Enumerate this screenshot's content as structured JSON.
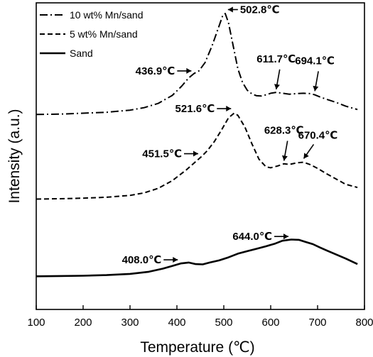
{
  "chart_data": {
    "type": "line",
    "xlabel": "Temperature (℃)",
    "ylabel": "Intensity (a.u.)",
    "xlim": [
      100,
      800
    ],
    "ylim": [
      0,
      10
    ],
    "xticks": [
      100,
      200,
      300,
      400,
      500,
      600,
      700,
      800
    ],
    "xtick_labels": [
      "100",
      "200",
      "300",
      "400",
      "500",
      "600",
      "700",
      "800"
    ],
    "y_ticks_shown": false,
    "grid": false,
    "legend_position": "top-left",
    "series": [
      {
        "name": "10 wt% Mn/sand",
        "style": "dash-dot",
        "x": [
          100,
          150,
          200,
          250,
          300,
          330,
          360,
          390,
          410,
          425,
          437,
          447,
          460,
          475,
          490,
          498,
          503,
          510,
          520,
          530,
          540,
          550,
          560,
          570,
          580,
          590,
          600,
          612,
          625,
          640,
          655,
          670,
          685,
          694,
          705,
          720,
          740,
          760,
          785
        ],
        "y": [
          6.36,
          6.37,
          6.4,
          6.43,
          6.5,
          6.58,
          6.72,
          6.98,
          7.28,
          7.55,
          7.7,
          7.78,
          8.05,
          8.6,
          9.25,
          9.6,
          9.65,
          9.35,
          8.6,
          7.85,
          7.4,
          7.15,
          7.03,
          6.97,
          6.96,
          7.0,
          7.05,
          7.08,
          7.05,
          7.02,
          7.04,
          7.05,
          7.04,
          7.0,
          6.93,
          6.85,
          6.75,
          6.63,
          6.52
        ]
      },
      {
        "name": "5 wt% Mn/sand",
        "style": "dashed",
        "x": [
          100,
          150,
          200,
          250,
          300,
          330,
          360,
          390,
          420,
          440,
          452,
          465,
          480,
          495,
          510,
          522,
          530,
          545,
          560,
          575,
          590,
          600,
          615,
          628,
          640,
          655,
          670,
          685,
          700,
          720,
          740,
          760,
          785
        ],
        "y": [
          3.6,
          3.61,
          3.63,
          3.66,
          3.72,
          3.8,
          3.95,
          4.2,
          4.55,
          4.82,
          4.98,
          5.18,
          5.48,
          5.85,
          6.25,
          6.4,
          6.33,
          5.95,
          5.4,
          4.9,
          4.65,
          4.62,
          4.68,
          4.75,
          4.73,
          4.78,
          4.8,
          4.72,
          4.6,
          4.42,
          4.25,
          4.08,
          3.98
        ]
      },
      {
        "name": "Sand",
        "style": "solid",
        "x": [
          100,
          150,
          200,
          250,
          300,
          340,
          370,
          390,
          408,
          425,
          440,
          455,
          470,
          490,
          510,
          530,
          550,
          570,
          590,
          610,
          625,
          644,
          660,
          675,
          690,
          705,
          720,
          740,
          760,
          785
        ],
        "y": [
          1.08,
          1.09,
          1.1,
          1.12,
          1.16,
          1.23,
          1.33,
          1.42,
          1.5,
          1.53,
          1.48,
          1.47,
          1.53,
          1.6,
          1.7,
          1.82,
          1.9,
          1.98,
          2.06,
          2.15,
          2.24,
          2.28,
          2.27,
          2.2,
          2.13,
          2.02,
          1.92,
          1.79,
          1.66,
          1.48
        ]
      }
    ],
    "annotations": [
      {
        "text": "502.8℃",
        "arrow": "left",
        "series": "10 wt% Mn/sand",
        "x": 502.8,
        "y": 9.78
      },
      {
        "text": "436.9℃",
        "arrow": "right",
        "series": "10 wt% Mn/sand",
        "x": 436.9,
        "y": 7.78
      },
      {
        "text": "611.7℃",
        "arrow": "down",
        "series": "10 wt% Mn/sand",
        "x": 611.7,
        "y": 7.18
      },
      {
        "text": "694.1℃",
        "arrow": "down",
        "series": "10 wt% Mn/sand",
        "x": 694.1,
        "y": 7.12
      },
      {
        "text": "521.6℃",
        "arrow": "right",
        "series": "5 wt% Mn/sand",
        "x": 521.6,
        "y": 6.55
      },
      {
        "text": "451.5℃",
        "arrow": "right",
        "series": "5 wt% Mn/sand",
        "x": 451.5,
        "y": 5.08
      },
      {
        "text": "628.3℃",
        "arrow": "down",
        "series": "5 wt% Mn/sand",
        "x": 628.3,
        "y": 4.85
      },
      {
        "text": "670.4℃",
        "arrow": "down-left",
        "series": "5 wt% Mn/sand",
        "x": 670.4,
        "y": 4.92
      },
      {
        "text": "408.0℃",
        "arrow": "right",
        "series": "Sand",
        "x": 408.0,
        "y": 1.62
      },
      {
        "text": "644.0℃",
        "arrow": "right",
        "series": "Sand",
        "x": 644.0,
        "y": 2.38
      }
    ],
    "colors": {
      "line": "#000000",
      "background": "#ffffff"
    }
  }
}
